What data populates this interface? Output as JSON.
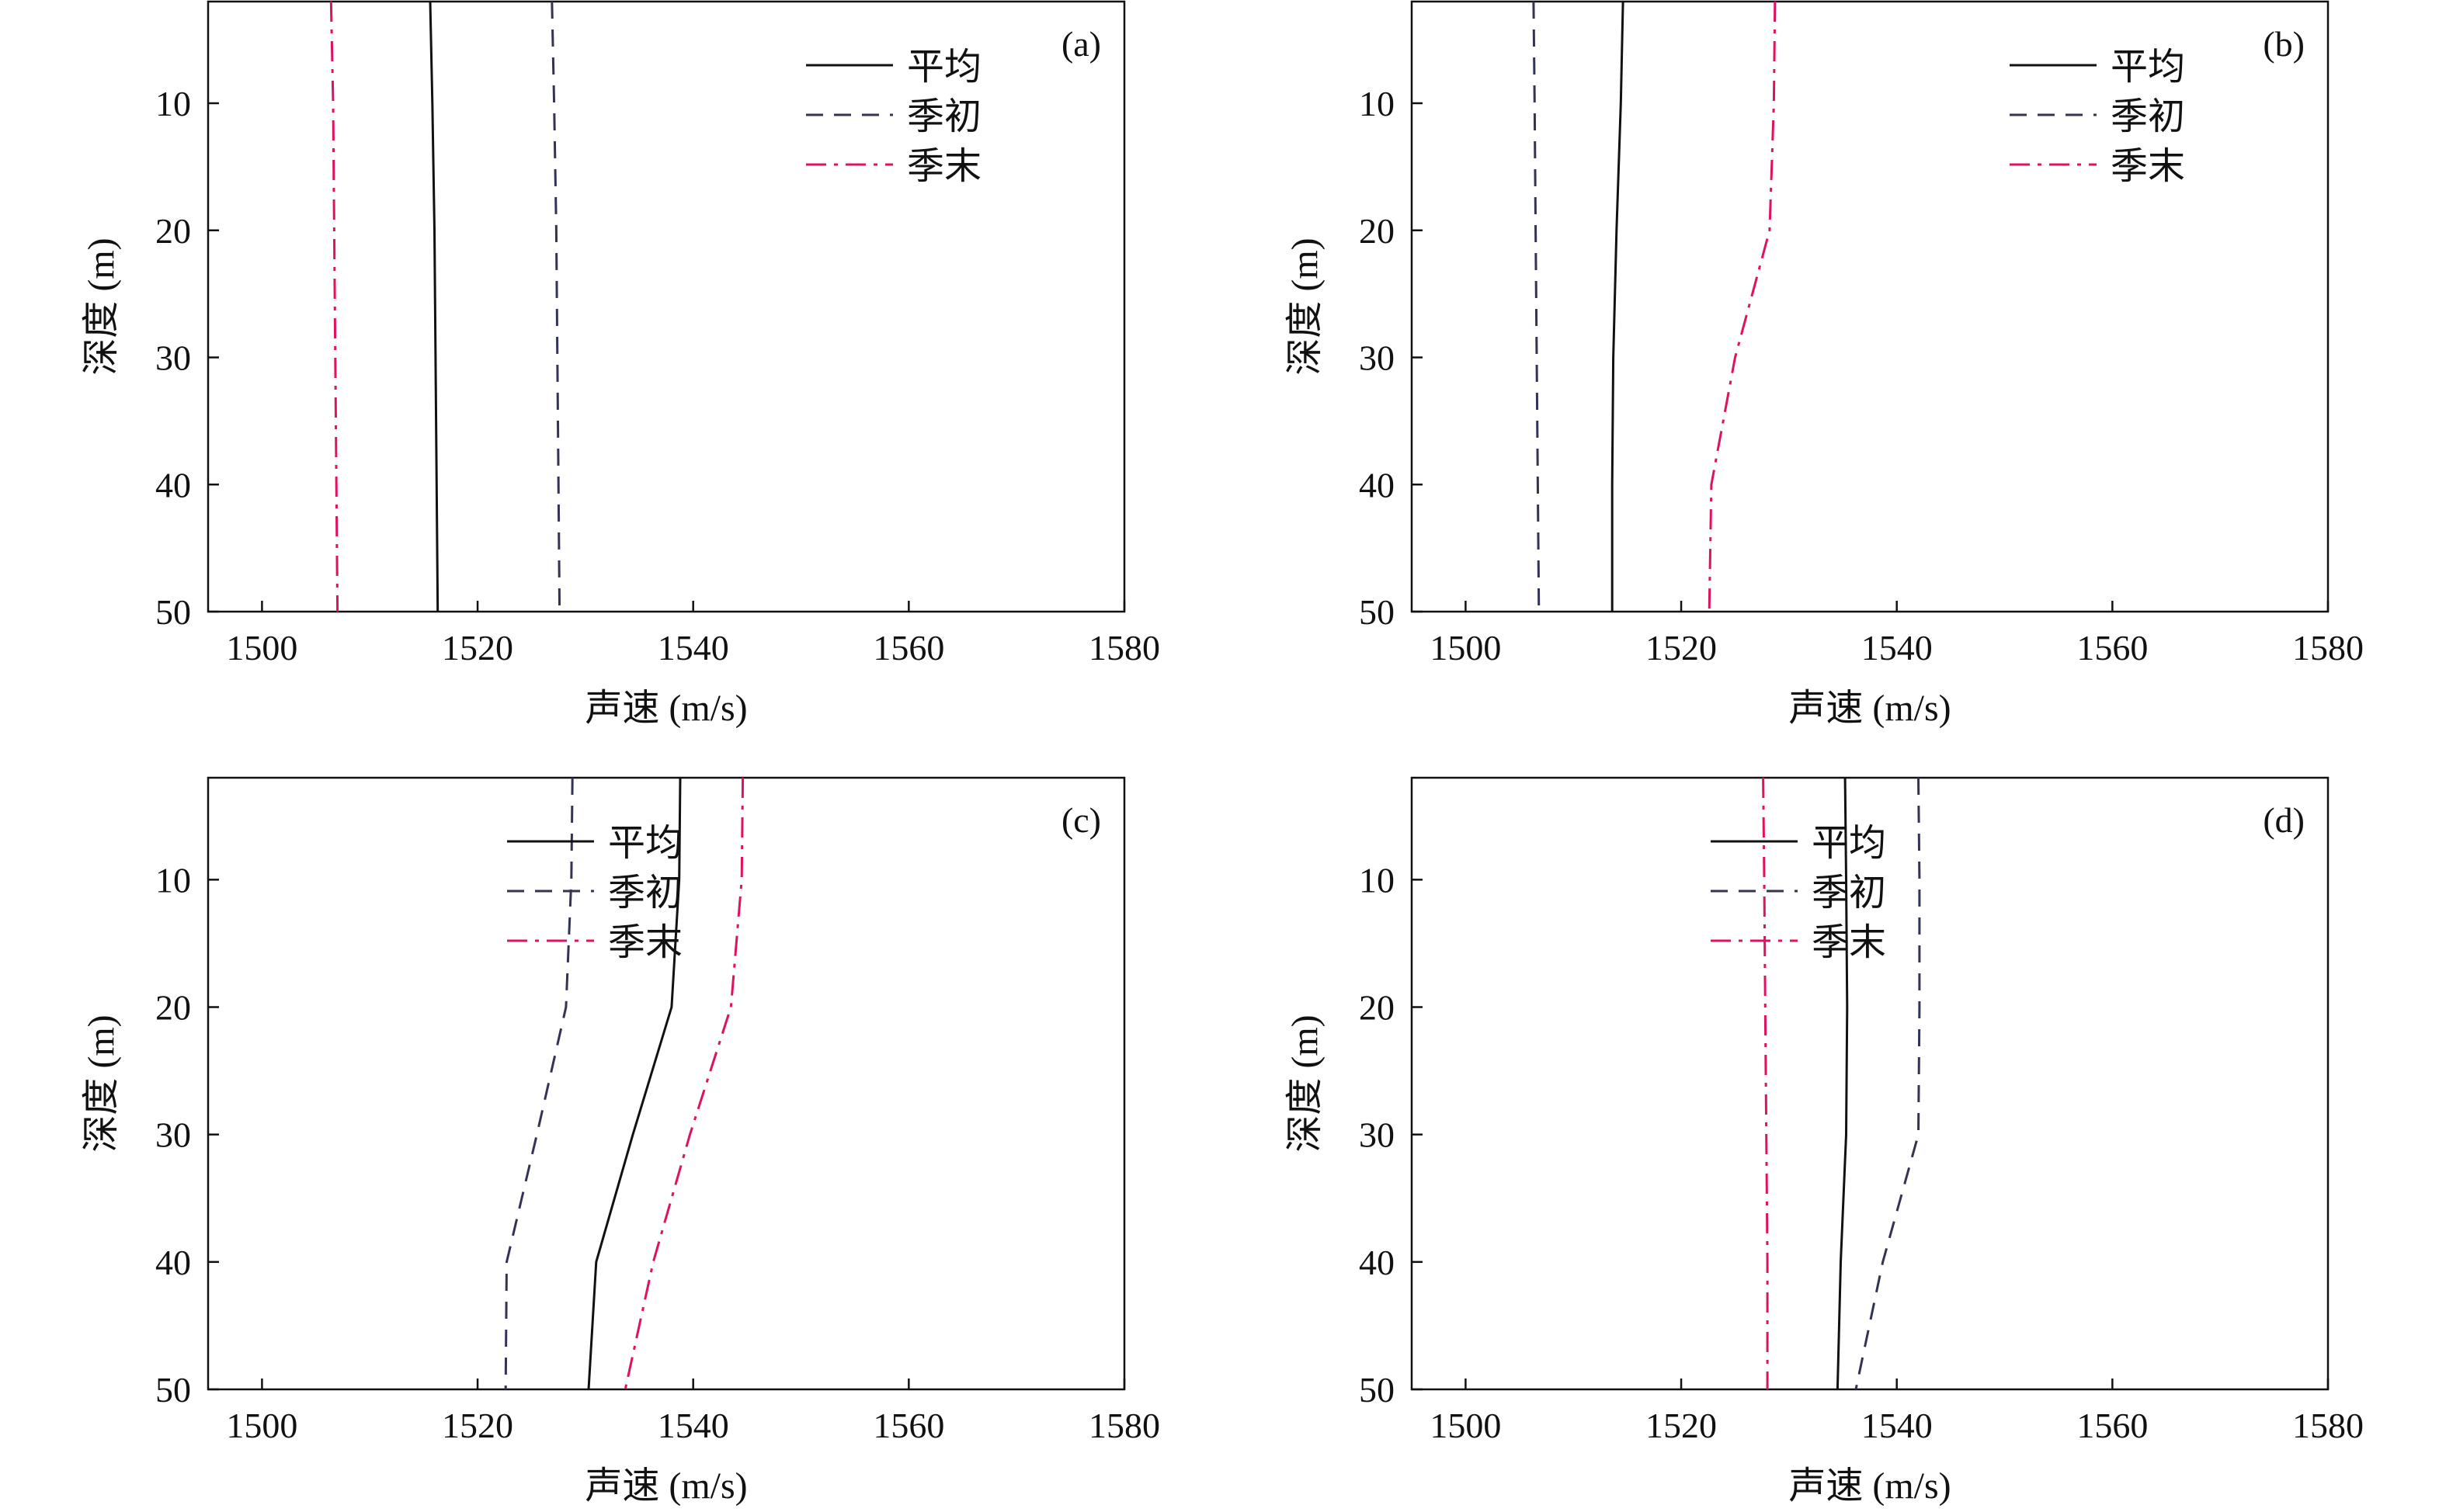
{
  "chart_data": [
    {
      "panel_label": "(a)",
      "type": "line",
      "xlabel": "声速 (m/s)",
      "ylabel": "深度 (m)",
      "xlim": [
        1495,
        1580
      ],
      "ylim": [
        2,
        50
      ],
      "y_inverted": true,
      "xticks": [
        1500,
        1520,
        1540,
        1560,
        1580
      ],
      "yticks": [
        10,
        20,
        30,
        40,
        50
      ],
      "grid": false,
      "legend_position": "top-right",
      "series": [
        {
          "name": "平均",
          "style": "solid",
          "color": "#111111",
          "x": [
            1515.6,
            1515.8,
            1516.0,
            1516.1,
            1516.2,
            1516.3
          ],
          "y": [
            2,
            10,
            20,
            30,
            40,
            50
          ]
        },
        {
          "name": "季初",
          "style": "dashed",
          "color": "#333355",
          "x": [
            1526.9,
            1527.1,
            1527.3,
            1527.4,
            1527.5,
            1527.6
          ],
          "y": [
            2,
            10,
            20,
            30,
            40,
            50
          ]
        },
        {
          "name": "季末",
          "style": "dashdot",
          "color": "#e0115f",
          "x": [
            1506.4,
            1506.6,
            1506.7,
            1506.8,
            1506.9,
            1507.0
          ],
          "y": [
            2,
            10,
            20,
            30,
            40,
            50
          ]
        }
      ]
    },
    {
      "panel_label": "(b)",
      "type": "line",
      "xlabel": "声速 (m/s)",
      "ylabel": "深度 (m)",
      "xlim": [
        1495,
        1580
      ],
      "ylim": [
        2,
        50
      ],
      "y_inverted": true,
      "xticks": [
        1500,
        1520,
        1540,
        1560,
        1580
      ],
      "yticks": [
        10,
        20,
        30,
        40,
        50
      ],
      "grid": false,
      "legend_position": "top-right",
      "series": [
        {
          "name": "平均",
          "style": "solid",
          "color": "#111111",
          "x": [
            1514.6,
            1514.4,
            1514.0,
            1513.7,
            1513.6,
            1513.6
          ],
          "y": [
            2,
            10,
            20,
            30,
            40,
            50
          ]
        },
        {
          "name": "季初",
          "style": "dashed",
          "color": "#333355",
          "x": [
            1506.3,
            1506.4,
            1506.5,
            1506.6,
            1506.7,
            1506.8
          ],
          "y": [
            2,
            10,
            20,
            30,
            40,
            50
          ]
        },
        {
          "name": "季末",
          "style": "dashdot",
          "color": "#e0115f",
          "x": [
            1528.7,
            1528.6,
            1528.2,
            1525.0,
            1522.8,
            1522.6
          ],
          "y": [
            2,
            10,
            20,
            30,
            40,
            50
          ]
        }
      ]
    },
    {
      "panel_label": "(c)",
      "type": "line",
      "xlabel": "声速 (m/s)",
      "ylabel": "深度 (m)",
      "xlim": [
        1495,
        1580
      ],
      "ylim": [
        2,
        50
      ],
      "y_inverted": true,
      "xticks": [
        1500,
        1520,
        1540,
        1560,
        1580
      ],
      "yticks": [
        10,
        20,
        30,
        40,
        50
      ],
      "grid": false,
      "legend_position": "top-left",
      "series": [
        {
          "name": "平均",
          "style": "solid",
          "color": "#111111",
          "x": [
            1538.8,
            1538.7,
            1538.0,
            1534.4,
            1531.0,
            1530.3
          ],
          "y": [
            2,
            10,
            20,
            30,
            40,
            50
          ]
        },
        {
          "name": "季初",
          "style": "dashed",
          "color": "#333355",
          "x": [
            1528.8,
            1528.7,
            1528.2,
            1525.5,
            1522.7,
            1522.6
          ],
          "y": [
            2,
            10,
            20,
            30,
            40,
            50
          ]
        },
        {
          "name": "季末",
          "style": "dashdot",
          "color": "#e0115f",
          "x": [
            1544.6,
            1544.5,
            1543.5,
            1539.7,
            1536.3,
            1533.7
          ],
          "y": [
            2,
            10,
            20,
            30,
            40,
            50
          ]
        }
      ]
    },
    {
      "panel_label": "(d)",
      "type": "line",
      "xlabel": "声速 (m/s)",
      "ylabel": "深度 (m)",
      "xlim": [
        1495,
        1580
      ],
      "ylim": [
        2,
        50
      ],
      "y_inverted": true,
      "xticks": [
        1500,
        1520,
        1540,
        1560,
        1580
      ],
      "yticks": [
        10,
        20,
        30,
        40,
        50
      ],
      "grid": false,
      "legend_position": "top-left",
      "series": [
        {
          "name": "平均",
          "style": "solid",
          "color": "#111111",
          "x": [
            1535.2,
            1535.3,
            1535.4,
            1535.3,
            1534.8,
            1534.5
          ],
          "y": [
            2,
            10,
            20,
            30,
            40,
            50
          ]
        },
        {
          "name": "季初",
          "style": "dashed",
          "color": "#333355",
          "x": [
            1542.0,
            1542.1,
            1542.1,
            1542.0,
            1538.7,
            1536.2
          ],
          "y": [
            2,
            10,
            20,
            30,
            40,
            50
          ]
        },
        {
          "name": "季末",
          "style": "dashdot",
          "color": "#e0115f",
          "x": [
            1527.6,
            1527.7,
            1527.8,
            1527.9,
            1528.0,
            1528.0
          ],
          "y": [
            2,
            10,
            20,
            30,
            40,
            50
          ]
        }
      ]
    }
  ]
}
